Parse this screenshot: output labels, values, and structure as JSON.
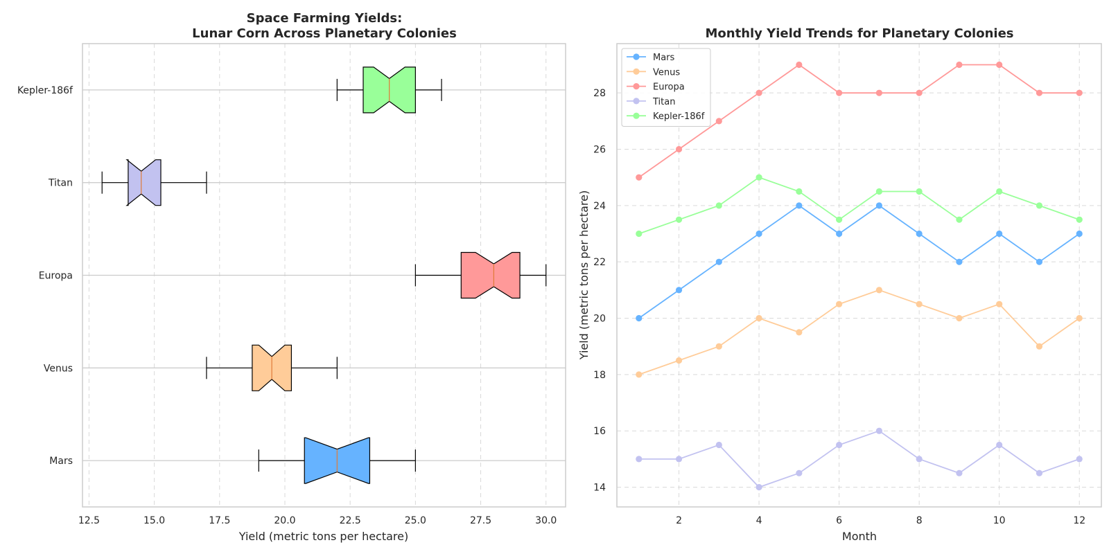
{
  "chart_data": [
    {
      "type": "boxplot",
      "orientation": "horizontal",
      "notched": true,
      "title_line1": "Space Farming Yields:",
      "title_line2": "Lunar Corn Across Planetary Colonies",
      "xlabel": "Yield (metric tons per hectare)",
      "ylabel": "",
      "xlim": [
        12.25,
        30.75
      ],
      "xticks": [
        "12.5",
        "15.0",
        "17.5",
        "20.0",
        "22.5",
        "25.0",
        "27.5",
        "30.0"
      ],
      "categories": [
        "Mars",
        "Venus",
        "Europa",
        "Titan",
        "Kepler-186f"
      ],
      "boxes": [
        {
          "name": "Mars",
          "whisker_low": 19,
          "q1": 20.75,
          "median": 22,
          "q3": 23.25,
          "whisker_high": 25,
          "notch_low": 20.8,
          "notch_high": 23.2,
          "color": "#66b3ff"
        },
        {
          "name": "Venus",
          "whisker_low": 17,
          "q1": 18.75,
          "median": 19.5,
          "q3": 20.25,
          "whisker_high": 22,
          "notch_low": 19.0,
          "notch_high": 20.0,
          "color": "#ffcc99"
        },
        {
          "name": "Europa",
          "whisker_low": 25,
          "q1": 26.75,
          "median": 28,
          "q3": 29,
          "whisker_high": 30,
          "notch_low": 27.3,
          "notch_high": 28.7,
          "color": "#ff9999"
        },
        {
          "name": "Titan",
          "whisker_low": 13,
          "q1": 14,
          "median": 14.5,
          "q3": 15.25,
          "whisker_high": 17,
          "notch_low": 13.95,
          "notch_high": 15.05,
          "color": "#c2c2f0"
        },
        {
          "name": "Kepler-186f",
          "whisker_low": 22,
          "q1": 23,
          "median": 24,
          "q3": 25,
          "whisker_high": 26,
          "notch_low": 23.4,
          "notch_high": 24.6,
          "color": "#99ff99"
        }
      ],
      "grid": true
    },
    {
      "type": "line",
      "title": "Monthly Yield Trends for Planetary Colonies",
      "xlabel": "Month",
      "ylabel": "Yield (metric tons per hectare)",
      "xlim": [
        0.45,
        12.55
      ],
      "ylim": [
        13.3,
        29.75
      ],
      "xticks": [
        2,
        4,
        6,
        8,
        10,
        12
      ],
      "yticks": [
        14,
        16,
        18,
        20,
        22,
        24,
        26,
        28
      ],
      "x": [
        1,
        2,
        3,
        4,
        5,
        6,
        7,
        8,
        9,
        10,
        11,
        12
      ],
      "legend_position": "upper-left",
      "grid": true,
      "series": [
        {
          "name": "Mars",
          "color": "#66b3ff",
          "values": [
            20,
            21,
            22,
            23,
            24,
            23,
            24,
            23,
            22,
            23,
            22,
            23
          ]
        },
        {
          "name": "Venus",
          "color": "#ffcc99",
          "values": [
            18,
            18.5,
            19,
            20,
            19.5,
            20.5,
            21,
            20.5,
            20,
            20.5,
            19,
            20
          ]
        },
        {
          "name": "Europa",
          "color": "#ff9999",
          "values": [
            25,
            26,
            27,
            28,
            29,
            28,
            28,
            28,
            29,
            29,
            28,
            28
          ]
        },
        {
          "name": "Titan",
          "color": "#c2c2f0",
          "values": [
            15,
            15,
            15.5,
            14,
            14.5,
            15.5,
            16,
            15,
            14.5,
            15.5,
            14.5,
            15
          ]
        },
        {
          "name": "Kepler-186f",
          "color": "#99ff99",
          "values": [
            23,
            23.5,
            24,
            25,
            24.5,
            23.5,
            24.5,
            24.5,
            23.5,
            24.5,
            24,
            23.5
          ]
        }
      ]
    }
  ]
}
